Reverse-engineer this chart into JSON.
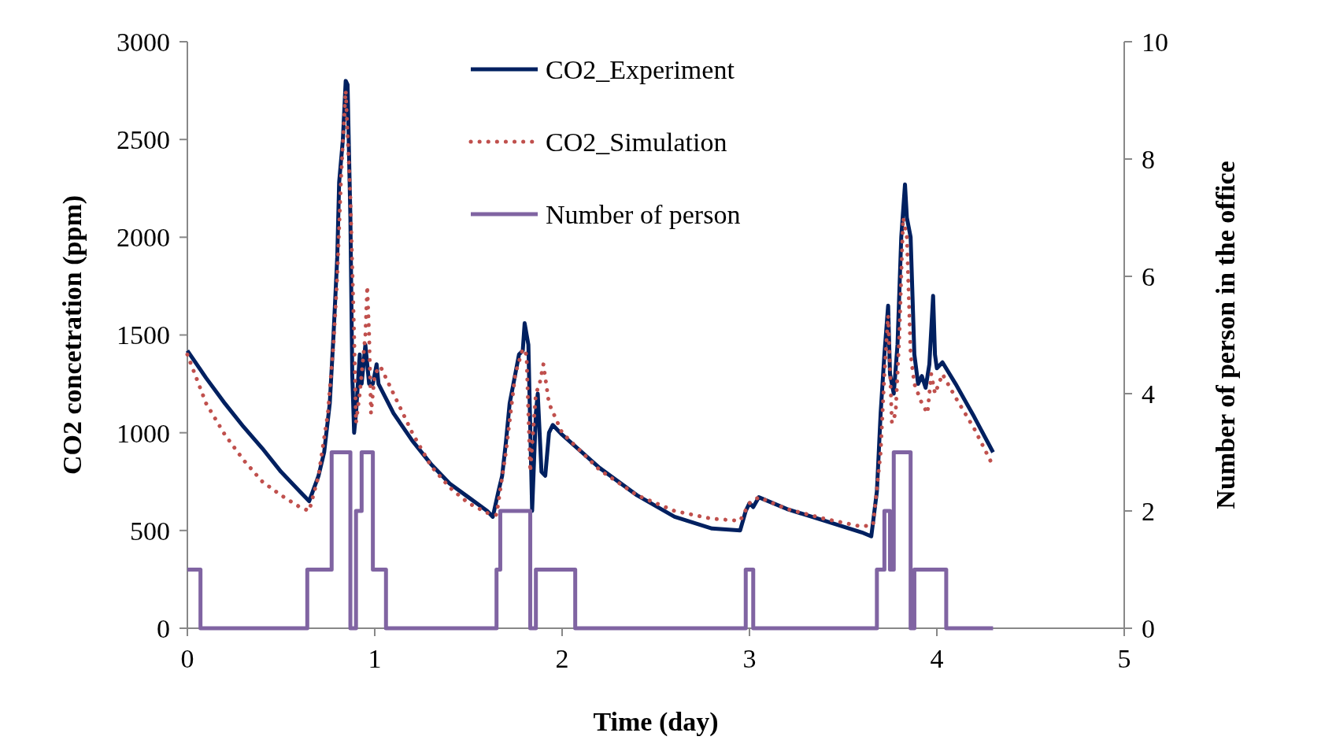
{
  "chart_data": {
    "type": "line",
    "xlabel": "Time (day)",
    "ylabel": "CO2 concetration (ppm)",
    "y2label": "Number of person in the office",
    "xlim": [
      0,
      5
    ],
    "xticks": [
      0,
      1,
      2,
      3,
      4,
      5
    ],
    "ylim": [
      0,
      3000
    ],
    "yticks": [
      0,
      500,
      1000,
      1500,
      2000,
      2500,
      3000
    ],
    "y2lim": [
      0,
      10
    ],
    "y2ticks": [
      0,
      2,
      4,
      6,
      8,
      10
    ],
    "grid": false,
    "legend": "top",
    "series": [
      {
        "name": "CO2_Experiment",
        "color": "#002060",
        "line_style": "solid",
        "x": [
          0,
          0.1,
          0.2,
          0.3,
          0.4,
          0.5,
          0.6,
          0.65,
          0.7,
          0.73,
          0.76,
          0.78,
          0.8,
          0.81,
          0.83,
          0.845,
          0.855,
          0.87,
          0.88,
          0.89,
          0.9,
          0.92,
          0.93,
          0.95,
          0.97,
          0.99,
          1.01,
          1.02,
          1.1,
          1.2,
          1.3,
          1.4,
          1.5,
          1.6,
          1.63,
          1.66,
          1.68,
          1.7,
          1.72,
          1.75,
          1.77,
          1.79,
          1.8,
          1.82,
          1.84,
          1.86,
          1.87,
          1.89,
          1.91,
          1.93,
          1.95,
          2.0,
          2.2,
          2.4,
          2.6,
          2.8,
          2.95,
          2.98,
          3.0,
          3.02,
          3.05,
          3.2,
          3.4,
          3.6,
          3.65,
          3.68,
          3.7,
          3.72,
          3.74,
          3.75,
          3.77,
          3.79,
          3.81,
          3.83,
          3.84,
          3.86,
          3.88,
          3.9,
          3.92,
          3.94,
          3.96,
          3.98,
          3.99,
          4.0,
          4.03,
          4.1,
          4.2,
          4.3
        ],
        "values": [
          1420,
          1280,
          1150,
          1030,
          920,
          800,
          700,
          650,
          780,
          900,
          1150,
          1500,
          1900,
          2280,
          2500,
          2800,
          2780,
          2100,
          1300,
          1000,
          1100,
          1400,
          1250,
          1450,
          1250,
          1250,
          1350,
          1250,
          1100,
          960,
          840,
          740,
          670,
          600,
          570,
          700,
          780,
          950,
          1150,
          1300,
          1400,
          1420,
          1560,
          1450,
          600,
          1100,
          1200,
          800,
          780,
          1000,
          1040,
          990,
          820,
          680,
          570,
          510,
          500,
          600,
          640,
          620,
          670,
          610,
          550,
          490,
          470,
          700,
          1100,
          1400,
          1650,
          1300,
          1200,
          1450,
          2000,
          2270,
          2100,
          2000,
          1400,
          1250,
          1290,
          1230,
          1350,
          1700,
          1400,
          1330,
          1360,
          1250,
          1080,
          900
        ]
      },
      {
        "name": "CO2_Simulation",
        "color": "#c0504d",
        "line_style": "dotted",
        "x": [
          0,
          0.1,
          0.2,
          0.3,
          0.4,
          0.5,
          0.6,
          0.65,
          0.7,
          0.75,
          0.78,
          0.8,
          0.82,
          0.845,
          0.87,
          0.89,
          0.9,
          0.92,
          0.95,
          0.96,
          0.97,
          0.98,
          1.0,
          1.03,
          1.1,
          1.2,
          1.3,
          1.4,
          1.5,
          1.6,
          1.65,
          1.7,
          1.75,
          1.79,
          1.81,
          1.83,
          1.86,
          1.88,
          1.9,
          1.93,
          2.0,
          2.2,
          2.4,
          2.6,
          2.8,
          2.95,
          3.0,
          3.05,
          3.2,
          3.4,
          3.6,
          3.66,
          3.7,
          3.72,
          3.74,
          3.76,
          3.78,
          3.8,
          3.82,
          3.84,
          3.86,
          3.88,
          3.92,
          3.95,
          3.97,
          3.99,
          4.03,
          4.1,
          4.2,
          4.3
        ],
        "values": [
          1400,
          1150,
          990,
          860,
          750,
          680,
          620,
          600,
          780,
          1100,
          1450,
          1800,
          2300,
          2750,
          2200,
          1500,
          1050,
          1200,
          1500,
          1750,
          1500,
          1100,
          1300,
          1340,
          1200,
          1000,
          830,
          720,
          640,
          590,
          580,
          900,
          1300,
          1430,
          1400,
          800,
          1200,
          1250,
          1350,
          1150,
          1000,
          810,
          680,
          600,
          560,
          550,
          640,
          670,
          610,
          560,
          520,
          530,
          900,
          1300,
          1600,
          1050,
          1100,
          1500,
          2100,
          2000,
          1400,
          1250,
          1150,
          1100,
          1300,
          1200,
          1300,
          1180,
          1020,
          830
        ]
      },
      {
        "name": "Number of person",
        "color": "#8064a2",
        "type": "step",
        "axis": "y2",
        "line_style": "solid",
        "x": [
          0,
          0.07,
          0.64,
          0.77,
          0.87,
          0.9,
          0.93,
          0.99,
          1.06,
          1.65,
          1.67,
          1.83,
          1.86,
          2.07,
          2.98,
          3.02,
          3.68,
          3.72,
          3.75,
          3.77,
          3.86,
          3.88,
          4.05,
          4.3
        ],
        "values": [
          1,
          0,
          1,
          3,
          0,
          2,
          3,
          1,
          0,
          1,
          2,
          0,
          1,
          0,
          1,
          0,
          1,
          2,
          1,
          3,
          0,
          1,
          0,
          0
        ]
      }
    ]
  }
}
